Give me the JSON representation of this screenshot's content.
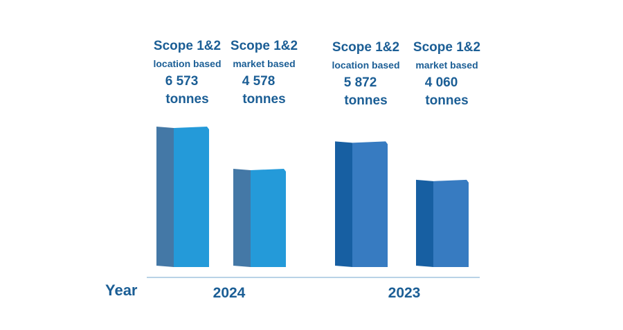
{
  "chart_data": {
    "type": "bar",
    "title": "",
    "xlabel": "Year",
    "ylabel": "",
    "unit": "tonnes",
    "groups": [
      {
        "year": "2024",
        "bars": [
          {
            "name": "Scope 1&2",
            "basis": "location based",
            "value_label": "6 573",
            "value": 6573,
            "color": "#249ad9",
            "shade": "#4478a6"
          },
          {
            "name": "Scope 1&2",
            "basis": "market based",
            "value_label": "4 578",
            "value": 4578,
            "color": "#249ad9",
            "shade": "#4478a6"
          }
        ]
      },
      {
        "year": "2023",
        "bars": [
          {
            "name": "Scope 1&2",
            "basis": "location based",
            "value_label": "5 872",
            "value": 5872,
            "color": "#377bc1",
            "shade": "#175fa2"
          },
          {
            "name": "Scope 1&2",
            "basis": "market based",
            "value_label": "4 060",
            "value": 4060,
            "color": "#377bc1",
            "shade": "#175fa2"
          }
        ]
      }
    ],
    "axis_color": "#8fb6d6",
    "text_color": "#1b5e95"
  }
}
